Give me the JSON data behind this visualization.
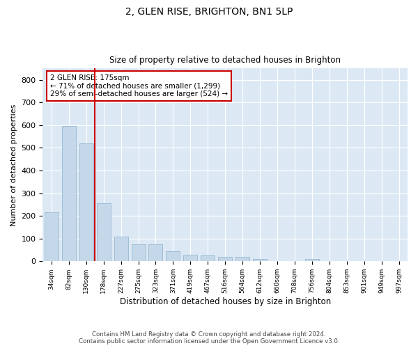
{
  "title_line1": "2, GLEN RISE, BRIGHTON, BN1 5LP",
  "title_line2": "Size of property relative to detached houses in Brighton",
  "xlabel": "Distribution of detached houses by size in Brighton",
  "ylabel": "Number of detached properties",
  "categories": [
    "34sqm",
    "82sqm",
    "130sqm",
    "178sqm",
    "227sqm",
    "275sqm",
    "323sqm",
    "371sqm",
    "419sqm",
    "467sqm",
    "516sqm",
    "564sqm",
    "612sqm",
    "660sqm",
    "708sqm",
    "756sqm",
    "804sqm",
    "853sqm",
    "901sqm",
    "949sqm",
    "997sqm"
  ],
  "values": [
    215,
    595,
    520,
    255,
    110,
    75,
    75,
    45,
    30,
    25,
    20,
    18,
    10,
    0,
    0,
    10,
    0,
    0,
    0,
    0,
    0
  ],
  "bar_color": "#c5d8ea",
  "bar_edge_color": "#8aaec8",
  "vline_x": 2.5,
  "vline_color": "#cc0000",
  "annotation_text": "2 GLEN RISE: 175sqm\n← 71% of detached houses are smaller (1,299)\n29% of semi-detached houses are larger (524) →",
  "annotation_box_color": "#cc0000",
  "ylim": [
    0,
    850
  ],
  "yticks": [
    0,
    100,
    200,
    300,
    400,
    500,
    600,
    700,
    800
  ],
  "footer_line1": "Contains HM Land Registry data © Crown copyright and database right 2024.",
  "footer_line2": "Contains public sector information licensed under the Open Government Licence v3.0.",
  "plot_bg_color": "#dce9f5"
}
